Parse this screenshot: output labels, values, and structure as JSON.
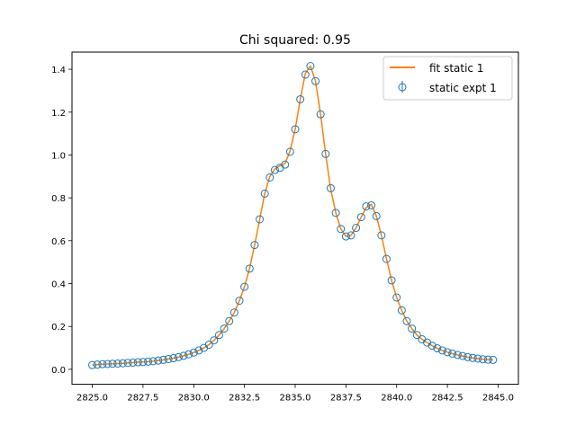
{
  "chart_data": {
    "type": "scatter",
    "title": "Chi squared: 0.95",
    "xlabel": "",
    "ylabel": "",
    "xlim": [
      2824.0,
      2846.0
    ],
    "ylim": [
      -0.07,
      1.48
    ],
    "xticks": [
      2825.0,
      2827.5,
      2830.0,
      2832.5,
      2835.0,
      2837.5,
      2840.0,
      2842.5,
      2845.0
    ],
    "xtick_labels": [
      "2825.0",
      "2827.5",
      "2830.0",
      "2832.5",
      "2835.0",
      "2837.5",
      "2840.0",
      "2842.5",
      "2845.0"
    ],
    "yticks": [
      0.0,
      0.2,
      0.4,
      0.6,
      0.8,
      1.0,
      1.2,
      1.4
    ],
    "ytick_labels": [
      "0.0",
      "0.2",
      "0.4",
      "0.6",
      "0.8",
      "1.0",
      "1.2",
      "1.4"
    ],
    "grid": false,
    "legend": {
      "position": "top-right"
    },
    "series": [
      {
        "name": "fit static 1",
        "kind": "line",
        "color": "#ff7f0e",
        "x": [
          2825.0,
          2825.25,
          2825.5,
          2825.75,
          2826.0,
          2826.25,
          2826.5,
          2826.75,
          2827.0,
          2827.25,
          2827.5,
          2827.75,
          2828.0,
          2828.25,
          2828.5,
          2828.75,
          2829.0,
          2829.25,
          2829.5,
          2829.75,
          2830.0,
          2830.25,
          2830.5,
          2830.75,
          2831.0,
          2831.25,
          2831.5,
          2831.75,
          2832.0,
          2832.25,
          2832.5,
          2832.75,
          2833.0,
          2833.25,
          2833.5,
          2833.75,
          2834.0,
          2834.25,
          2834.5,
          2834.75,
          2835.0,
          2835.25,
          2835.5,
          2835.75,
          2836.0,
          2836.25,
          2836.5,
          2836.75,
          2837.0,
          2837.25,
          2837.5,
          2837.75,
          2838.0,
          2838.25,
          2838.5,
          2838.75,
          2839.0,
          2839.25,
          2839.5,
          2839.75,
          2840.0,
          2840.25,
          2840.5,
          2840.75,
          2841.0,
          2841.25,
          2841.5,
          2841.75,
          2842.0,
          2842.25,
          2842.5,
          2842.75,
          2843.0,
          2843.25,
          2843.5,
          2843.75,
          2844.0,
          2844.25,
          2844.5,
          2844.75
        ],
        "y": [
          0.02,
          0.022,
          0.024,
          0.025,
          0.026,
          0.027,
          0.028,
          0.03,
          0.031,
          0.033,
          0.034,
          0.036,
          0.038,
          0.041,
          0.044,
          0.048,
          0.052,
          0.057,
          0.063,
          0.07,
          0.078,
          0.088,
          0.1,
          0.115,
          0.135,
          0.16,
          0.19,
          0.225,
          0.265,
          0.32,
          0.385,
          0.47,
          0.58,
          0.7,
          0.82,
          0.9,
          0.935,
          0.95,
          0.96,
          1.02,
          1.12,
          1.26,
          1.38,
          1.415,
          1.345,
          1.19,
          1.005,
          0.84,
          0.73,
          0.655,
          0.62,
          0.625,
          0.66,
          0.71,
          0.755,
          0.77,
          0.715,
          0.625,
          0.515,
          0.415,
          0.335,
          0.275,
          0.225,
          0.19,
          0.16,
          0.14,
          0.125,
          0.11,
          0.098,
          0.088,
          0.08,
          0.073,
          0.067,
          0.062,
          0.057,
          0.053,
          0.05,
          0.047,
          0.045,
          0.044
        ]
      },
      {
        "name": "static expt 1",
        "kind": "errorbar-markers",
        "color": "#1f77b4",
        "x": [
          2825.0,
          2825.25,
          2825.5,
          2825.75,
          2826.0,
          2826.25,
          2826.5,
          2826.75,
          2827.0,
          2827.25,
          2827.5,
          2827.75,
          2828.0,
          2828.25,
          2828.5,
          2828.75,
          2829.0,
          2829.25,
          2829.5,
          2829.75,
          2830.0,
          2830.25,
          2830.5,
          2830.75,
          2831.0,
          2831.25,
          2831.5,
          2831.75,
          2832.0,
          2832.25,
          2832.5,
          2832.75,
          2833.0,
          2833.25,
          2833.5,
          2833.75,
          2834.0,
          2834.25,
          2834.5,
          2834.75,
          2835.0,
          2835.25,
          2835.5,
          2835.75,
          2836.0,
          2836.25,
          2836.5,
          2836.75,
          2837.0,
          2837.25,
          2837.5,
          2837.75,
          2838.0,
          2838.25,
          2838.5,
          2838.75,
          2839.0,
          2839.25,
          2839.5,
          2839.75,
          2840.0,
          2840.25,
          2840.5,
          2840.75,
          2841.0,
          2841.25,
          2841.5,
          2841.75,
          2842.0,
          2842.25,
          2842.5,
          2842.75,
          2843.0,
          2843.25,
          2843.5,
          2843.75,
          2844.0,
          2844.25,
          2844.5,
          2844.75
        ],
        "y": [
          0.02,
          0.022,
          0.024,
          0.025,
          0.026,
          0.027,
          0.028,
          0.03,
          0.031,
          0.033,
          0.034,
          0.036,
          0.038,
          0.041,
          0.044,
          0.048,
          0.052,
          0.057,
          0.063,
          0.07,
          0.078,
          0.088,
          0.1,
          0.115,
          0.135,
          0.16,
          0.19,
          0.225,
          0.265,
          0.32,
          0.385,
          0.47,
          0.58,
          0.7,
          0.82,
          0.895,
          0.93,
          0.94,
          0.955,
          1.015,
          1.12,
          1.26,
          1.375,
          1.415,
          1.345,
          1.19,
          1.005,
          0.845,
          0.73,
          0.655,
          0.62,
          0.625,
          0.66,
          0.71,
          0.76,
          0.765,
          0.715,
          0.625,
          0.515,
          0.415,
          0.335,
          0.275,
          0.225,
          0.19,
          0.16,
          0.14,
          0.125,
          0.11,
          0.098,
          0.088,
          0.08,
          0.073,
          0.067,
          0.062,
          0.057,
          0.053,
          0.05,
          0.047,
          0.045,
          0.044
        ]
      }
    ]
  }
}
